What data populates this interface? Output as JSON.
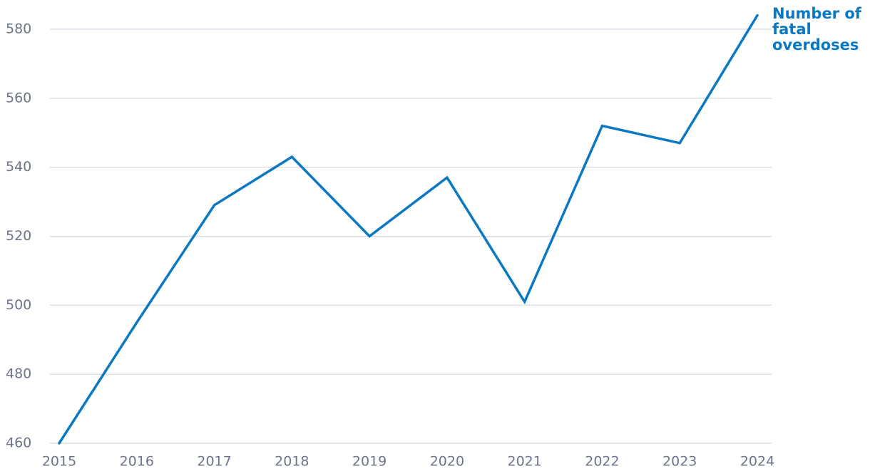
{
  "chart_data": {
    "type": "line",
    "x": [
      2015,
      2016,
      2017,
      2018,
      2019,
      2020,
      2021,
      2022,
      2023,
      2024
    ],
    "series": [
      {
        "name": "Number of fatal overdoses",
        "color": "#0a78c2",
        "values": [
          460,
          495,
          529,
          543,
          520,
          537,
          501,
          552,
          547,
          584
        ]
      }
    ],
    "xlim": [
      2015,
      2024
    ],
    "xticks": [
      2015,
      2016,
      2017,
      2018,
      2019,
      2020,
      2021,
      2022,
      2023,
      2024
    ],
    "ylim": [
      460,
      585
    ],
    "yticks": [
      460,
      480,
      500,
      520,
      540,
      560,
      580
    ],
    "grid": true
  }
}
